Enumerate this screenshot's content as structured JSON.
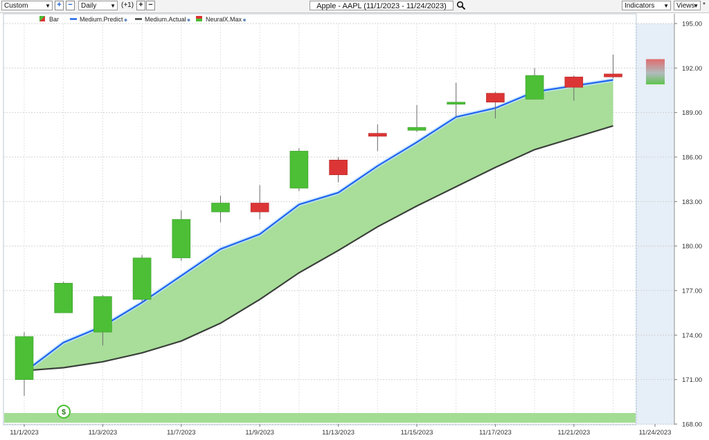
{
  "toolbar": {
    "range": "Custom",
    "add_symbol": "+",
    "remove_symbol": "−",
    "interval": "Daily",
    "offset": "(+1)",
    "zoom_in": "+",
    "zoom_out": "−",
    "title": "Apple - AAPL (11/1/2023 - 11/24/2023)",
    "indicators": "Indicators",
    "views": "Views",
    "pin": "*"
  },
  "legend": {
    "bar": "Bar",
    "medium_predict": "Medium.Predict",
    "medium_actual": "Medium.Actual",
    "neuralx_max": "NeuralX.Max"
  },
  "colors": {
    "up": "#4cbf36",
    "down": "#dc3535",
    "predict": "#1f63ef",
    "actual": "#3a3f3a",
    "fill": "#a3dc93",
    "forecast_panel": "#e6eef7"
  },
  "chart_data": {
    "type": "candlestick",
    "ylim": [
      168,
      195
    ],
    "y_ticks": [
      "168.00",
      "171.00",
      "174.00",
      "177.00",
      "180.00",
      "183.00",
      "186.00",
      "189.00",
      "192.00",
      "195.00"
    ],
    "x_tick_labels": [
      "11/1/2023",
      "11/3/2023",
      "11/7/2023",
      "11/9/2023",
      "11/13/2023",
      "11/15/2023",
      "11/17/2023",
      "11/21/2023",
      "11/24/2023"
    ],
    "candles": [
      {
        "date": "11/1/2023",
        "open": 171.0,
        "high": 174.2,
        "low": 169.9,
        "close": 173.9
      },
      {
        "date": "11/2/2023",
        "open": 175.5,
        "high": 177.6,
        "low": 175.5,
        "close": 177.5
      },
      {
        "date": "11/3/2023",
        "open": 174.2,
        "high": 176.7,
        "low": 173.3,
        "close": 176.6
      },
      {
        "date": "11/6/2023",
        "open": 176.4,
        "high": 179.4,
        "low": 176.2,
        "close": 179.2
      },
      {
        "date": "11/7/2023",
        "open": 179.2,
        "high": 182.4,
        "low": 179.0,
        "close": 181.8
      },
      {
        "date": "11/8/2023",
        "open": 182.3,
        "high": 183.4,
        "low": 181.6,
        "close": 182.9
      },
      {
        "date": "11/9/2023",
        "open": 182.9,
        "high": 184.1,
        "low": 181.8,
        "close": 182.3
      },
      {
        "date": "11/10/2023",
        "open": 183.9,
        "high": 186.6,
        "low": 183.7,
        "close": 186.4
      },
      {
        "date": "11/13/2023",
        "open": 185.8,
        "high": 186.0,
        "low": 184.3,
        "close": 184.8
      },
      {
        "date": "11/14/2023",
        "open": 187.6,
        "high": 188.2,
        "low": 186.4,
        "close": 187.4
      },
      {
        "date": "11/15/2023",
        "open": 187.8,
        "high": 189.5,
        "low": 187.7,
        "close": 188.0
      },
      {
        "date": "11/16/2023",
        "open": 189.6,
        "high": 191.0,
        "low": 188.7,
        "close": 189.7
      },
      {
        "date": "11/17/2023",
        "open": 190.3,
        "high": 190.4,
        "low": 188.6,
        "close": 189.7
      },
      {
        "date": "11/20/2023",
        "open": 189.9,
        "high": 192.0,
        "low": 189.9,
        "close": 191.5
      },
      {
        "date": "11/21/2023",
        "open": 191.4,
        "high": 191.5,
        "low": 189.8,
        "close": 190.7
      },
      {
        "date": "11/22/2023",
        "open": 191.6,
        "high": 192.9,
        "low": 191.3,
        "close": 191.4
      }
    ],
    "neuralx_max": {
      "date": "11/24/2023",
      "high": 192.6,
      "low": 190.9
    },
    "series": [
      {
        "name": "Medium.Predict",
        "values": [
          171.5,
          173.5,
          174.6,
          176.2,
          178.0,
          179.8,
          180.8,
          182.8,
          183.6,
          185.4,
          187.0,
          188.7,
          189.3,
          190.4,
          190.8,
          191.2
        ]
      },
      {
        "name": "Medium.Actual",
        "values": [
          171.6,
          171.8,
          172.2,
          172.8,
          173.6,
          174.8,
          176.4,
          178.2,
          179.7,
          181.3,
          182.7,
          184.0,
          185.3,
          186.5,
          187.3,
          188.1
        ]
      }
    ]
  }
}
